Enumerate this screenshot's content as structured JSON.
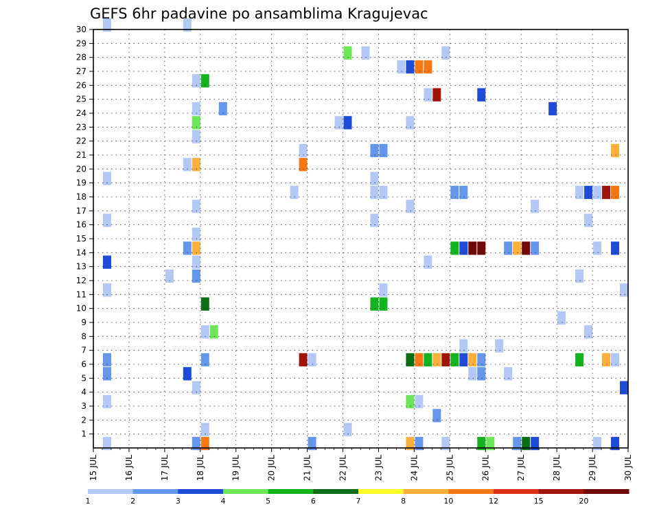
{
  "chart_data": {
    "type": "heatmap",
    "title": "GEFS 6hr padavine po ansamblima Kragujevac",
    "xlabel": "",
    "ylabel": "",
    "y_ticks": [
      "1",
      "2",
      "3",
      "4",
      "5",
      "6",
      "7",
      "8",
      "9",
      "10",
      "11",
      "12",
      "13",
      "14",
      "15",
      "16",
      "17",
      "18",
      "19",
      "20",
      "21",
      "22",
      "23",
      "24",
      "25",
      "26",
      "27",
      "28",
      "29",
      "30"
    ],
    "x_ticks": [
      "15 JUL",
      "16 JUL",
      "17 JUL",
      "18 JUL",
      "19 JUL",
      "20 JUL",
      "21 JUL",
      "22 JUL",
      "23 JUL",
      "24 JUL",
      "25 JUL",
      "26 JUL",
      "27 JUL",
      "28 JUL",
      "29 JUL",
      "30 JUL"
    ],
    "x_range_days": [
      15,
      30
    ],
    "y_range_members": [
      0,
      30
    ],
    "grid": true,
    "grid_style": "dotted",
    "colorbar": {
      "labels": [
        "1",
        "2",
        "3",
        "4",
        "5",
        "6",
        "7",
        "8",
        "10",
        "12",
        "15",
        "20"
      ],
      "colors": [
        "#b4c8f5",
        "#6496eb",
        "#1e4bd7",
        "#6ee65a",
        "#14b41e",
        "#0a6e14",
        "#ffff28",
        "#ffaf3c",
        "#f57814",
        "#dc3214",
        "#a0140a",
        "#6e0a0a"
      ]
    },
    "cells": [
      [
        15.25,
        0,
        1
      ],
      [
        15.25,
        3,
        1
      ],
      [
        15.25,
        5,
        2
      ],
      [
        15.25,
        6,
        1
      ],
      [
        15.25,
        6,
        2
      ],
      [
        15.25,
        11,
        1
      ],
      [
        15.25,
        13,
        3
      ],
      [
        15.25,
        16,
        1
      ],
      [
        15.25,
        19,
        1
      ],
      [
        15.25,
        30,
        1
      ],
      [
        17.0,
        12,
        1
      ],
      [
        17.5,
        5,
        3
      ],
      [
        17.5,
        14,
        2
      ],
      [
        17.5,
        20,
        1
      ],
      [
        17.5,
        30,
        1
      ],
      [
        17.75,
        0,
        2
      ],
      [
        17.75,
        4,
        1
      ],
      [
        17.75,
        12,
        2
      ],
      [
        17.75,
        13,
        1
      ],
      [
        17.75,
        14,
        8
      ],
      [
        17.75,
        15,
        1
      ],
      [
        17.75,
        17,
        1
      ],
      [
        17.75,
        20,
        8
      ],
      [
        17.75,
        22,
        1
      ],
      [
        17.75,
        23,
        4
      ],
      [
        17.75,
        24,
        1
      ],
      [
        17.75,
        26,
        1
      ],
      [
        18.0,
        0,
        10
      ],
      [
        18.0,
        1,
        1
      ],
      [
        18.0,
        6,
        2
      ],
      [
        18.0,
        8,
        1
      ],
      [
        18.0,
        10,
        6
      ],
      [
        18.0,
        26,
        5
      ],
      [
        18.25,
        8,
        4
      ],
      [
        18.5,
        24,
        2
      ],
      [
        20.5,
        18,
        1
      ],
      [
        20.75,
        6,
        15
      ],
      [
        20.75,
        20,
        10
      ],
      [
        20.75,
        21,
        1
      ],
      [
        21.0,
        0,
        2
      ],
      [
        21.0,
        6,
        1
      ],
      [
        21.75,
        23,
        1
      ],
      [
        22.0,
        1,
        1
      ],
      [
        22.0,
        23,
        3
      ],
      [
        22.0,
        28,
        4
      ],
      [
        22.5,
        28,
        1
      ],
      [
        22.75,
        10,
        5
      ],
      [
        22.75,
        16,
        1
      ],
      [
        22.75,
        18,
        1
      ],
      [
        22.75,
        19,
        1
      ],
      [
        22.75,
        21,
        2
      ],
      [
        23.0,
        10,
        5
      ],
      [
        23.0,
        11,
        1
      ],
      [
        23.0,
        18,
        1
      ],
      [
        23.0,
        21,
        2
      ],
      [
        23.5,
        27,
        1
      ],
      [
        23.75,
        0,
        8
      ],
      [
        23.75,
        3,
        4
      ],
      [
        23.75,
        6,
        6
      ],
      [
        23.75,
        17,
        1
      ],
      [
        23.75,
        23,
        1
      ],
      [
        23.75,
        27,
        3
      ],
      [
        24.0,
        0,
        2
      ],
      [
        24.0,
        3,
        1
      ],
      [
        24.0,
        6,
        10
      ],
      [
        24.0,
        27,
        10
      ],
      [
        24.25,
        6,
        5
      ],
      [
        24.25,
        13,
        1
      ],
      [
        24.25,
        25,
        1
      ],
      [
        24.25,
        27,
        10
      ],
      [
        24.5,
        2,
        2
      ],
      [
        24.5,
        6,
        8
      ],
      [
        24.5,
        25,
        15
      ],
      [
        24.75,
        0,
        1
      ],
      [
        24.75,
        6,
        15
      ],
      [
        24.75,
        28,
        1
      ],
      [
        25.0,
        6,
        5
      ],
      [
        25.0,
        14,
        5
      ],
      [
        25.0,
        18,
        2
      ],
      [
        25.25,
        6,
        3
      ],
      [
        25.25,
        7,
        1
      ],
      [
        25.25,
        14,
        3
      ],
      [
        25.25,
        18,
        2
      ],
      [
        25.5,
        5,
        1
      ],
      [
        25.5,
        6,
        8
      ],
      [
        25.5,
        14,
        20
      ],
      [
        25.75,
        5,
        2
      ],
      [
        25.75,
        6,
        2
      ],
      [
        25.75,
        14,
        20
      ],
      [
        25.75,
        25,
        3
      ],
      [
        25.75,
        0,
        5
      ],
      [
        26.0,
        0,
        4
      ],
      [
        26.25,
        7,
        1
      ],
      [
        26.5,
        5,
        1
      ],
      [
        26.5,
        14,
        2
      ],
      [
        26.75,
        14,
        8
      ],
      [
        26.75,
        0,
        2
      ],
      [
        27.0,
        0,
        6
      ],
      [
        27.0,
        14,
        20
      ],
      [
        27.25,
        0,
        3
      ],
      [
        27.25,
        14,
        2
      ],
      [
        27.25,
        17,
        1
      ],
      [
        27.75,
        24,
        3
      ],
      [
        28.0,
        9,
        1
      ],
      [
        28.5,
        12,
        1
      ],
      [
        28.5,
        18,
        1
      ],
      [
        28.5,
        6,
        5
      ],
      [
        28.75,
        8,
        1
      ],
      [
        28.75,
        16,
        1
      ],
      [
        28.75,
        18,
        3
      ],
      [
        29.0,
        0,
        1
      ],
      [
        29.0,
        14,
        1
      ],
      [
        29.0,
        18,
        1
      ],
      [
        29.25,
        6,
        8
      ],
      [
        29.25,
        18,
        15
      ],
      [
        29.5,
        0,
        3
      ],
      [
        29.5,
        6,
        1
      ],
      [
        29.5,
        14,
        3
      ],
      [
        29.5,
        18,
        10
      ],
      [
        29.5,
        21,
        8
      ],
      [
        29.75,
        11,
        1
      ],
      [
        29.75,
        4,
        3
      ]
    ]
  }
}
